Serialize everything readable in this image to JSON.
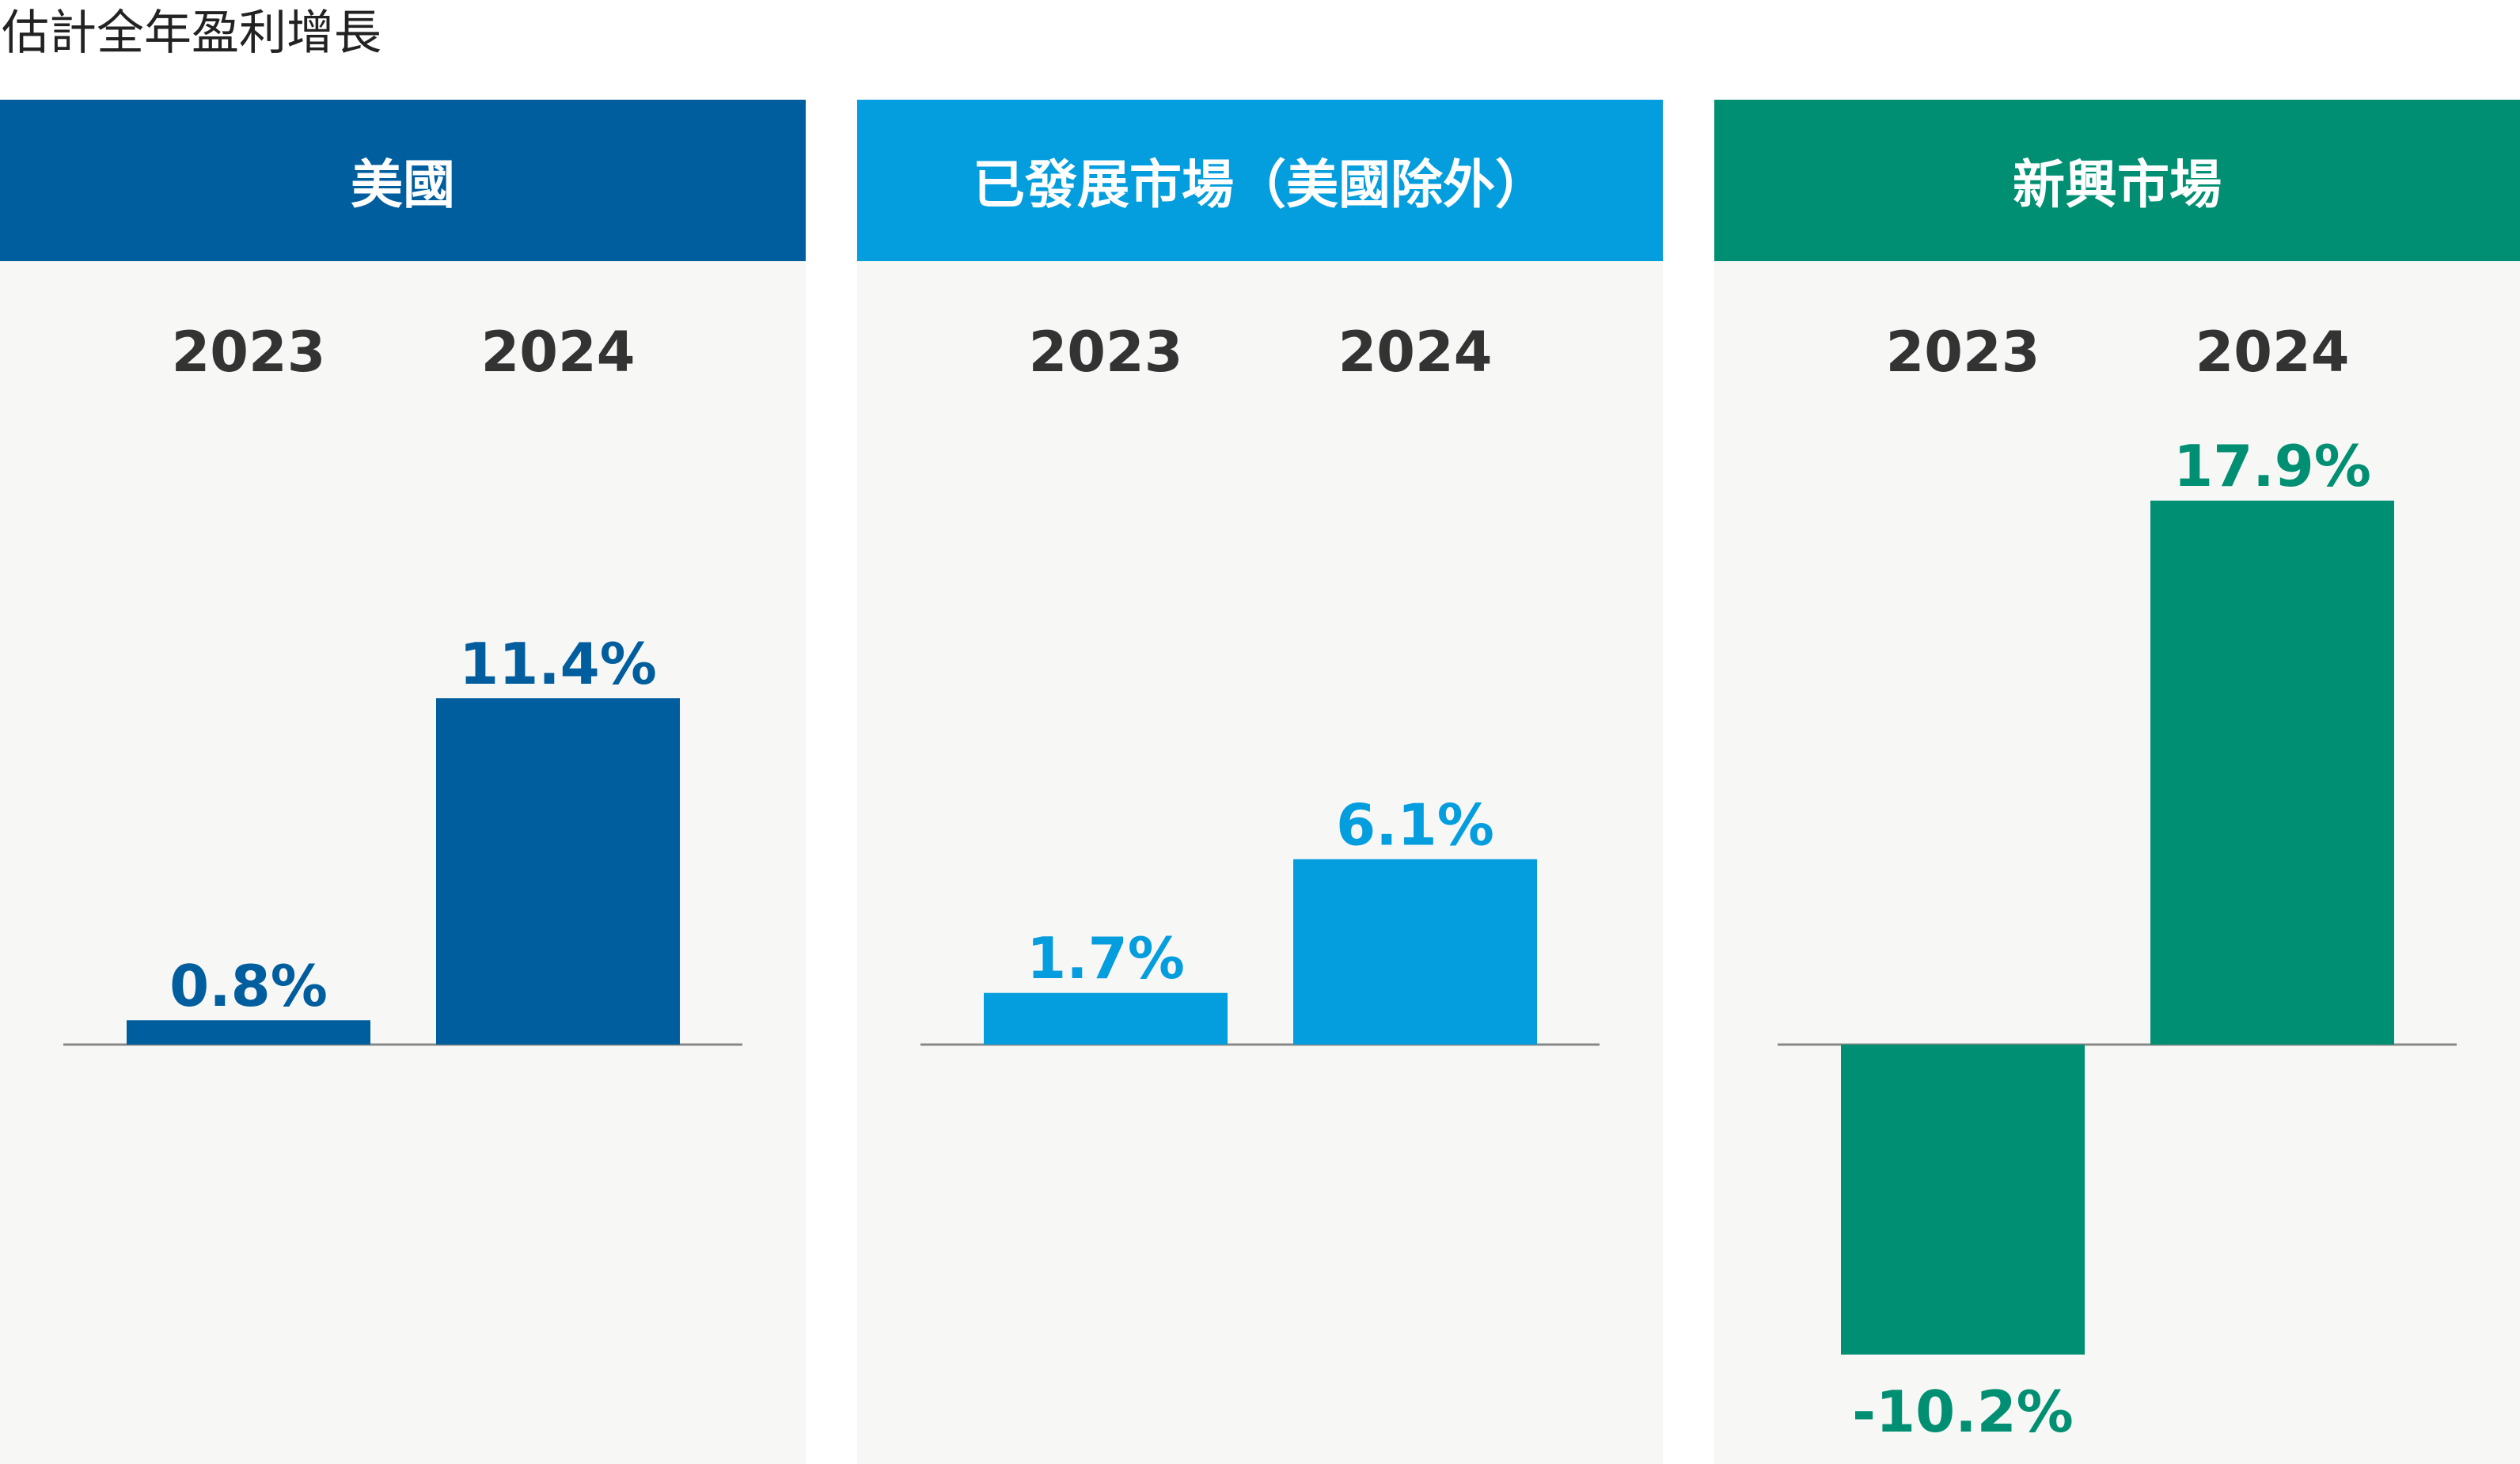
{
  "title": "估計全年盈利增長",
  "colors": {
    "us": "#005e9e",
    "developed": "#049ddd",
    "emerging": "#008f72",
    "baseline": "#888888",
    "panel_bg": "#f7f7f5"
  },
  "chart_data": [
    {
      "type": "bar",
      "title": "美國",
      "categories": [
        "2023",
        "2024"
      ],
      "values": [
        0.8,
        11.4
      ],
      "value_labels": [
        "0.8%",
        "11.4%"
      ],
      "unit": "%",
      "ylim": [
        -12,
        20
      ],
      "color": "#005e9e"
    },
    {
      "type": "bar",
      "title": "已發展市場（美國除外）",
      "categories": [
        "2023",
        "2024"
      ],
      "values": [
        1.7,
        6.1
      ],
      "value_labels": [
        "1.7%",
        "6.1%"
      ],
      "unit": "%",
      "ylim": [
        -12,
        20
      ],
      "color": "#049ddd"
    },
    {
      "type": "bar",
      "title": "新興市場",
      "categories": [
        "2023",
        "2024"
      ],
      "values": [
        -10.2,
        17.9
      ],
      "value_labels": [
        "-10.2%",
        "17.9%"
      ],
      "unit": "%",
      "ylim": [
        -12,
        20
      ],
      "color": "#008f72"
    }
  ]
}
